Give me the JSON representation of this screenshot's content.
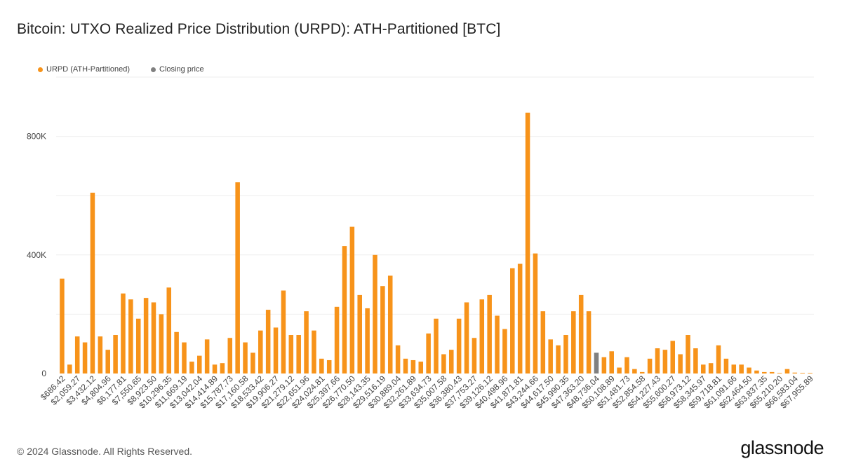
{
  "title": "Bitcoin: UTXO Realized Price Distribution (URPD): ATH-Partitioned [BTC]",
  "legend": [
    {
      "label": "URPD (ATH-Partitioned)",
      "color": "#f7931a"
    },
    {
      "label": "Closing price",
      "color": "#808080"
    }
  ],
  "footer": {
    "copyright": "© 2024 Glassnode. All Rights Reserved.",
    "brand": "glassnode"
  },
  "colors": {
    "bar": "#f7931a",
    "closing": "#808080",
    "grid": "#eeeeee",
    "text": "#444444"
  },
  "chart_data": {
    "type": "bar",
    "title": "Bitcoin: UTXO Realized Price Distribution (URPD): ATH-Partitioned [BTC]",
    "ylim": [
      0,
      1000000
    ],
    "yticks": [
      0,
      400000,
      800000
    ],
    "ytick_labels": [
      "0",
      "400K",
      "800K"
    ],
    "grid": true,
    "legend_position": "top-left",
    "closing_price_index": 70,
    "x_tick_labels": [
      "$686.42",
      "$2,059.27",
      "$3,432.12",
      "$4,804.96",
      "$6,177.81",
      "$7,550.65",
      "$8,923.50",
      "$10,296.35",
      "$11,669.19",
      "$13,042.04",
      "$14,414.89",
      "$15,787.73",
      "$17,160.58",
      "$18,533.42",
      "$19,906.27",
      "$21,279.12",
      "$22,651.96",
      "$24,024.81",
      "$25,397.66",
      "$26,770.50",
      "$28,143.35",
      "$29,516.19",
      "$30,889.04",
      "$32,261.89",
      "$33,634.73",
      "$35,007.58",
      "$36,380.43",
      "$37,753.27",
      "$39,126.12",
      "$40,498.96",
      "$41,871.81",
      "$43,244.66",
      "$44,617.50",
      "$45,990.35",
      "$47,363.20",
      "$48,736.04",
      "$50,108.89",
      "$51,481.73",
      "$52,854.58",
      "$54,227.43",
      "$55,600.27",
      "$56,973.12",
      "$58,345.97",
      "$59,718.81",
      "$61,091.66",
      "$62,464.50",
      "$63,837.35",
      "$65,210.20",
      "$66,583.04",
      "$67,955.89"
    ],
    "values": [
      320000,
      30000,
      125000,
      105000,
      610000,
      125000,
      80000,
      130000,
      270000,
      250000,
      185000,
      255000,
      240000,
      200000,
      290000,
      140000,
      105000,
      40000,
      60000,
      115000,
      30000,
      35000,
      120000,
      645000,
      105000,
      70000,
      145000,
      215000,
      155000,
      280000,
      130000,
      130000,
      210000,
      145000,
      50000,
      45000,
      225000,
      430000,
      495000,
      265000,
      220000,
      400000,
      295000,
      330000,
      95000,
      50000,
      45000,
      40000,
      135000,
      185000,
      65000,
      80000,
      185000,
      240000,
      120000,
      250000,
      265000,
      195000,
      150000,
      355000,
      370000,
      880000,
      405000,
      210000,
      115000,
      95000,
      130000,
      210000,
      265000,
      210000,
      70000,
      55000,
      75000,
      20000,
      55000,
      15000,
      5000,
      50000,
      85000,
      80000,
      110000,
      65000,
      130000,
      85000,
      30000,
      35000,
      95000,
      50000,
      30000,
      30000,
      20000,
      10000,
      5000,
      5000,
      2000,
      15000,
      3000,
      2000,
      2000
    ]
  }
}
